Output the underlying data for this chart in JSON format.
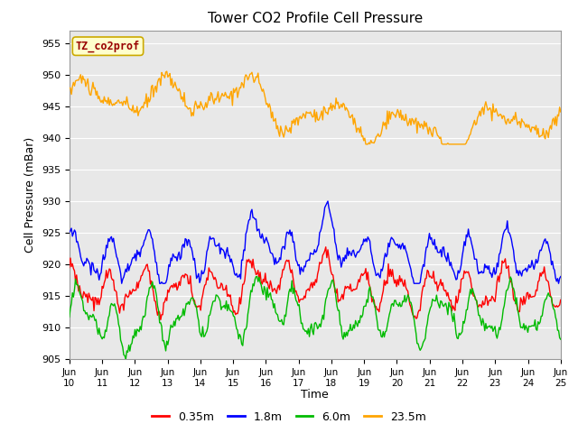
{
  "title": "Tower CO2 Profile Cell Pressure",
  "xlabel": "Time",
  "ylabel": "Cell Pressure (mBar)",
  "ylim": [
    905,
    957
  ],
  "yticks": [
    905,
    910,
    915,
    920,
    925,
    930,
    935,
    940,
    945,
    950,
    955
  ],
  "colors": {
    "0.35m": "#ff0000",
    "1.8m": "#0000ff",
    "6.0m": "#00bb00",
    "23.5m": "#ffa500"
  },
  "legend_label": "TZ_co2prof",
  "legend_label_color": "#990000",
  "legend_box_color": "#ffffcc",
  "legend_box_edge": "#ccaa00",
  "bg_color": "#e8e8e8",
  "n_points": 480,
  "x_start": 10,
  "x_end": 25,
  "xtick_labels": [
    "Jun\n10",
    "Jun\n11",
    "Jun\n12",
    "Jun\n13",
    "Jun\n14",
    "Jun\n15",
    "Jun\n16",
    "Jun\n17",
    "Jun\n18",
    "Jun\n19",
    "Jun\n20",
    "Jun\n21",
    "Jun\n22",
    "Jun\n23",
    "Jun\n24",
    "Jun\n25"
  ],
  "xtick_positions": [
    10,
    11,
    12,
    13,
    14,
    15,
    16,
    17,
    18,
    19,
    20,
    21,
    22,
    23,
    24,
    25
  ]
}
